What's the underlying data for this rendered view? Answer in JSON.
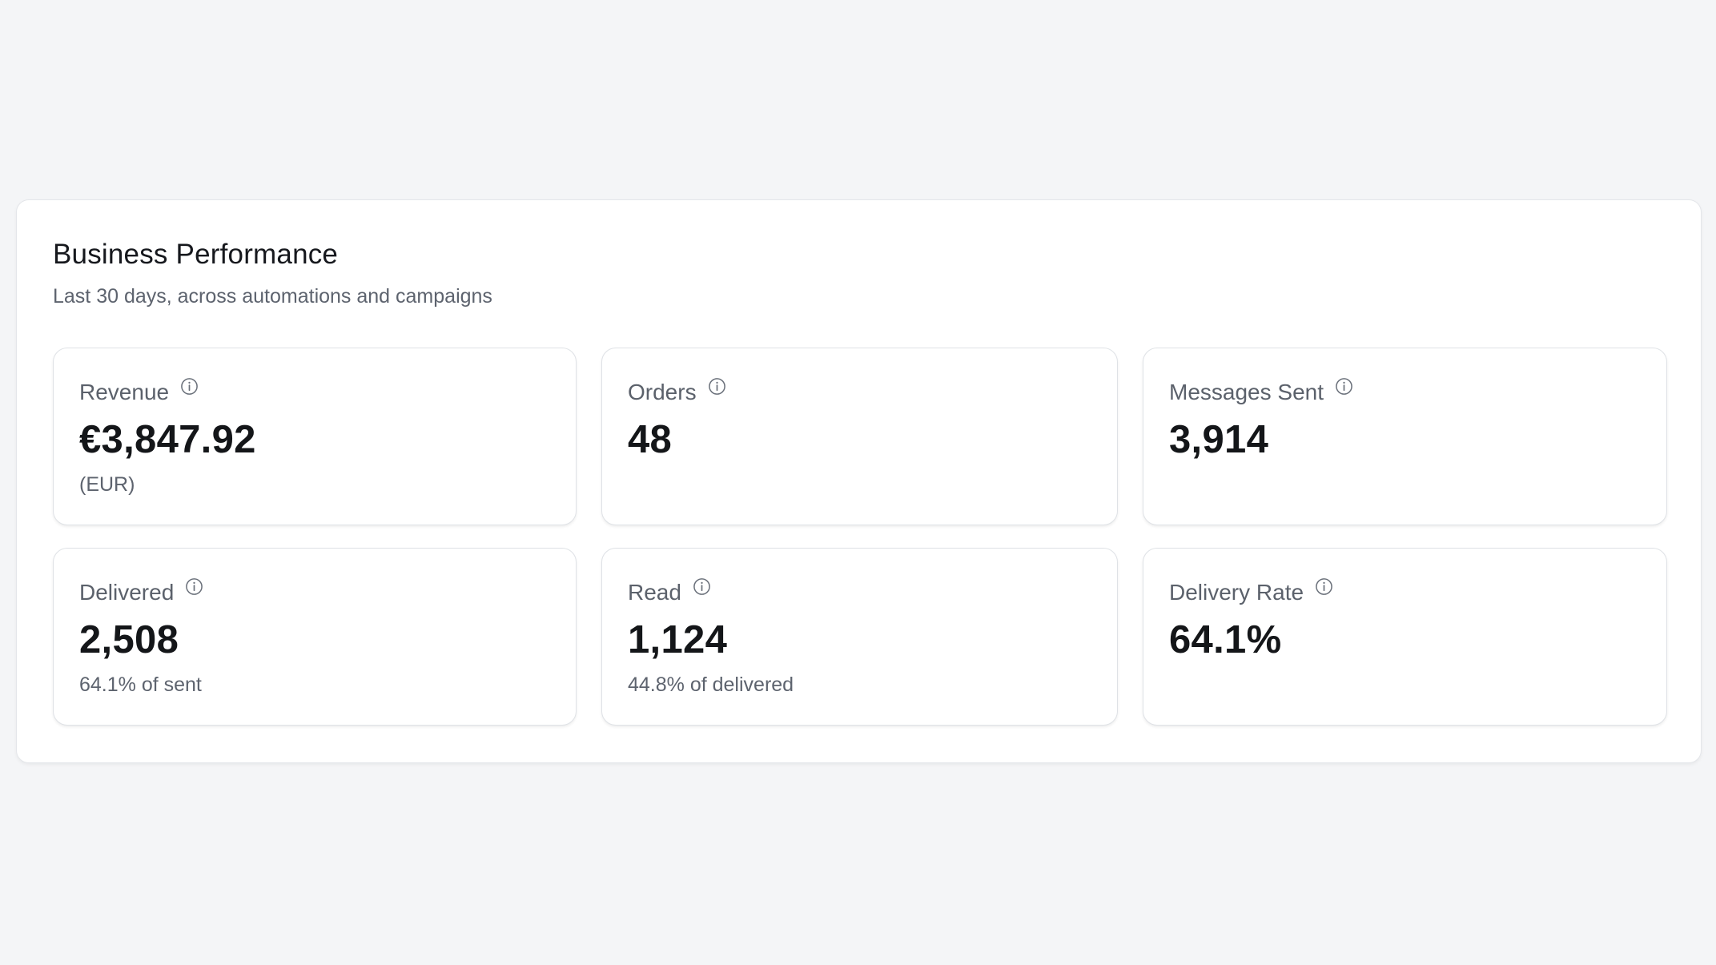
{
  "panel": {
    "title": "Business Performance",
    "subtitle": "Last 30 days, across automations and campaigns"
  },
  "metrics": [
    {
      "label": "Revenue",
      "value": "€3,847.92",
      "sub": "(EUR)",
      "icon": "info-icon"
    },
    {
      "label": "Orders",
      "value": "48",
      "sub": "",
      "icon": "info-icon"
    },
    {
      "label": "Messages Sent",
      "value": "3,914",
      "sub": "",
      "icon": "info-icon"
    },
    {
      "label": "Delivered",
      "value": "2,508",
      "sub": "64.1% of sent",
      "icon": "info-icon"
    },
    {
      "label": "Read",
      "value": "1,124",
      "sub": "44.8% of delivered",
      "icon": "info-icon"
    },
    {
      "label": "Delivery Rate",
      "value": "64.1%",
      "sub": "",
      "icon": "info-icon"
    }
  ],
  "colors": {
    "page_background": "#f4f5f7",
    "card_background": "#ffffff",
    "title_text": "#16181d",
    "muted_text": "#5d636e",
    "value_text": "#141619",
    "border": "#dfe2e6"
  }
}
